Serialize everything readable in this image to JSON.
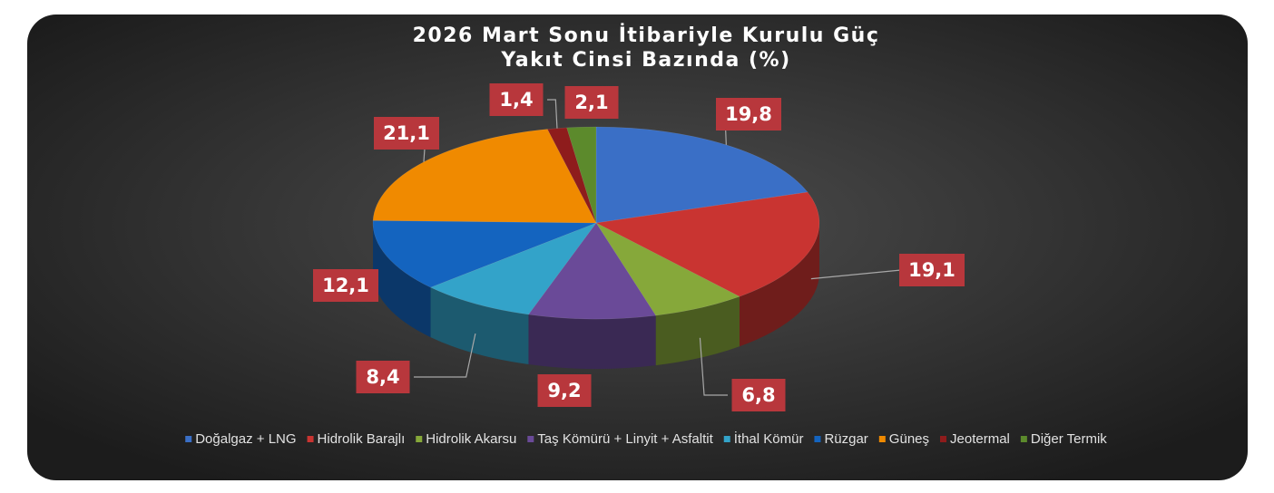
{
  "chart_data": {
    "type": "pie3d",
    "title": "2026 Mart Sonu İtibariyle Kurulu Güç",
    "subtitle": "Yakıt Cinsi Bazında (%)",
    "categories": [
      "Doğalgaz + LNG",
      "Hidrolik Barajlı",
      "Hidrolik Akarsu",
      "Taş Kömürü + Linyit + Asfaltit",
      "İthal Kömür",
      "Rüzgar",
      "Güneş",
      "Jeotermal",
      "Diğer Termik"
    ],
    "values": [
      19.8,
      19.1,
      6.8,
      9.2,
      8.4,
      12.1,
      21.1,
      1.4,
      2.1
    ],
    "value_labels": [
      "19,8",
      "19,1",
      "6,8",
      "9,2",
      "8,4",
      "12,1",
      "21,1",
      "1,4",
      "2,1"
    ],
    "colors": [
      "#3a6fc6",
      "#c93431",
      "#86a83a",
      "#6a4a98",
      "#33a3c9",
      "#1464bf",
      "#f08a00",
      "#8e1c1c",
      "#5c8a2c"
    ],
    "legend": "bottom"
  }
}
